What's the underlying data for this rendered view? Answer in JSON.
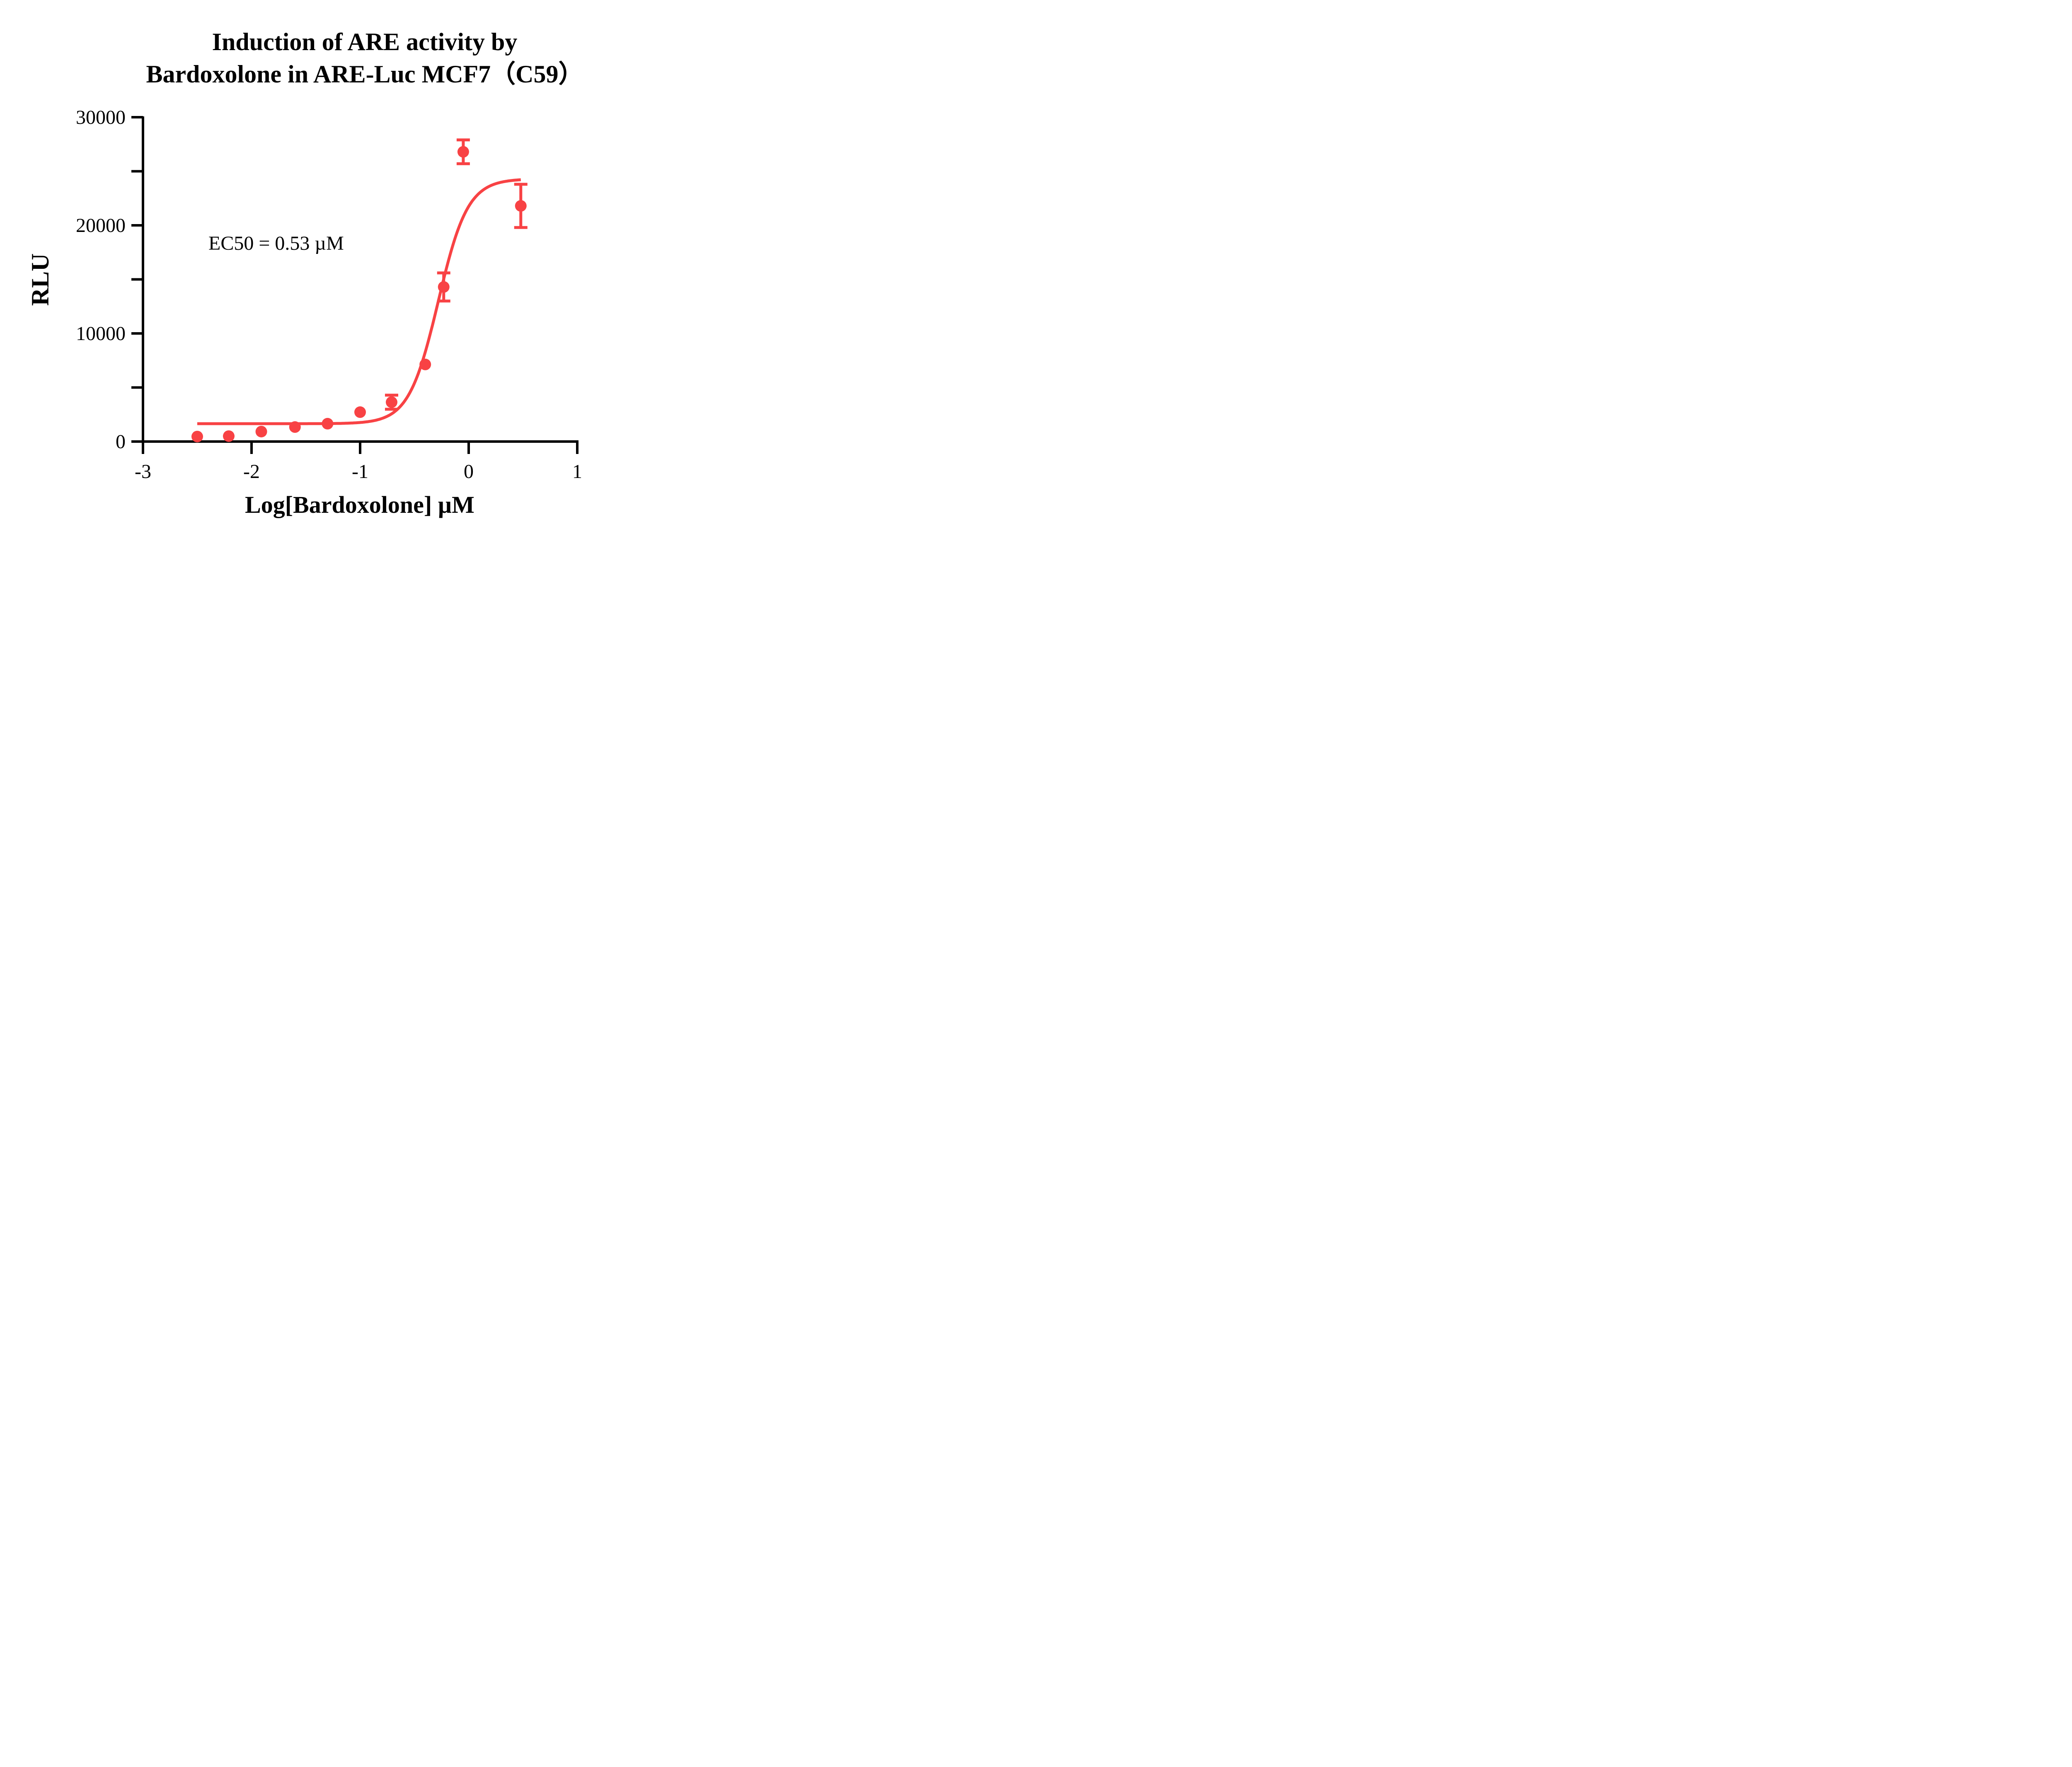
{
  "chart_data": {
    "type": "scatter",
    "title": "Induction of ARE activity by Bardoxolone in ARE-Luc MCF7（C59）",
    "title_lines": [
      "Induction of ARE activity by",
      "Bardoxolone in ARE-Luc MCF7（C59）"
    ],
    "xlabel": "Log[Bardoxolone]  µM",
    "ylabel": "RLU",
    "xlim": [
      -3,
      1
    ],
    "ylim": [
      0,
      30000
    ],
    "x_ticks": [
      -3,
      -2,
      -1,
      0,
      1
    ],
    "x_tick_labels": [
      "-3",
      "-2",
      "-1",
      "0",
      "1"
    ],
    "y_ticks": [
      0,
      10000,
      20000,
      30000
    ],
    "y_tick_labels": [
      "0",
      "10000",
      "20000",
      "30000"
    ],
    "y_minor_ticks": [
      5000,
      15000,
      25000
    ],
    "grid": false,
    "legend": null,
    "annotations": [
      "EC50 = 0.53 µM"
    ],
    "series": [
      {
        "name": "Bardoxolone",
        "color": "#F84244",
        "x": [
          -2.5,
          -2.21,
          -1.91,
          -1.6,
          -1.3,
          -1.0,
          -0.71,
          -0.4,
          -0.23,
          -0.05,
          0.48
        ],
        "y": [
          460,
          500,
          920,
          1340,
          1650,
          2720,
          3640,
          7130,
          14300,
          26800,
          21800
        ],
        "error": [
          0,
          0,
          0,
          0,
          0,
          0,
          650,
          0,
          1300,
          1100,
          2000
        ]
      }
    ],
    "fit_curve": {
      "model": "4PL sigmoid",
      "color": "#F84244",
      "bottom": 1650,
      "top": 24300,
      "log_ec50": -0.28,
      "hill_slope": 3.2,
      "x_range": [
        -2.5,
        0.48
      ]
    }
  }
}
